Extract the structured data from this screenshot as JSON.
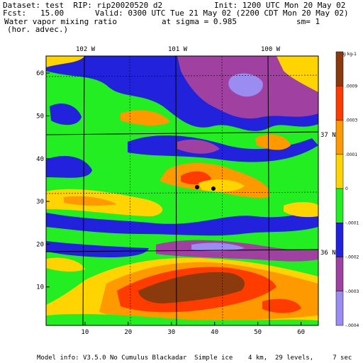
{
  "header": {
    "dataset": "Dataset: test  RIP: rip20020520 d2",
    "init": "Init: 1200 UTC Mon 20 May 02",
    "fcst": "Fcst:   15.00",
    "valid": "Valid: 0300 UTC Tue 21 May 02 (2200 CDT Mon 20 May 02)",
    "field": "Water vapor mixing ratio",
    "sigma": "at sigma = 0.985",
    "sm": "sm= 1",
    "advec": "(hor. advec.)"
  },
  "footer": {
    "model_info": "Model info: V3.5.0 No Cumulus Blackadar  Simple ice    4 km,  29 levels,     7 sec"
  },
  "colors": {
    "brown": "#8B3A0E",
    "red": "#FF3C00",
    "orange": "#FF9900",
    "yellow": "#FFD400",
    "green": "#22EE22",
    "blue": "#2222DD",
    "purple": "#A040A0",
    "lavender": "#9A8CF0"
  },
  "chart_data": {
    "type": "heatmap",
    "description_field": "Water vapor mixing ratio horizontal advection",
    "x_ticks": [
      "10",
      "20",
      "30",
      "40",
      "50",
      "60"
    ],
    "y_ticks": [
      "10",
      "20",
      "30",
      "40",
      "50",
      "60"
    ],
    "xlim": [
      1,
      64
    ],
    "ylim": [
      1,
      64
    ],
    "longitude_labels": [
      "102 W",
      "101 W",
      "100 W"
    ],
    "latitude_labels": [
      "37 N",
      "36 N"
    ],
    "legend_unit": "g kg-1",
    "legend_levels": [
      ".0009",
      ".0003",
      ".0001",
      "0",
      "-.0001",
      "-.0002",
      "-.0003",
      "-.0004"
    ],
    "color_bins": [
      {
        "min": 0.0009,
        "max": null,
        "color": "#8B3A0E"
      },
      {
        "min": 0.0006,
        "max": 0.0009,
        "color": "#FF3C00"
      },
      {
        "min": 0.0003,
        "max": 0.0006,
        "color": "#FF9900"
      },
      {
        "min": 0.0001,
        "max": 0.0003,
        "color": "#FFD400"
      },
      {
        "min": -0.0001,
        "max": 0.0001,
        "color": "#22EE22"
      },
      {
        "min": -0.0002,
        "max": -0.0001,
        "color": "#2222DD"
      },
      {
        "min": -0.0003,
        "max": -0.0002,
        "color": "#A040A0"
      },
      {
        "min": null,
        "max": -0.0003,
        "color": "#9A8CF0"
      }
    ]
  }
}
